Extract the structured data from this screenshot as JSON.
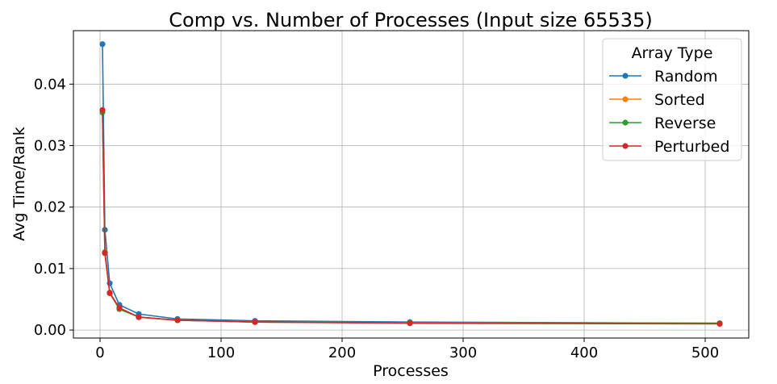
{
  "chart_data": {
    "type": "line",
    "title": "Comp vs. Number of Processes (Input size 65535)",
    "xlabel": "Processes",
    "ylabel": "Avg Time/Rank",
    "x": [
      2,
      4,
      8,
      16,
      32,
      64,
      128,
      256,
      512
    ],
    "xlim": [
      -22,
      536
    ],
    "ylim": [
      -0.0013,
      0.0487
    ],
    "xticks": [
      0,
      100,
      200,
      300,
      400,
      500
    ],
    "xtick_labels": [
      "0",
      "100",
      "200",
      "300",
      "400",
      "500"
    ],
    "yticks": [
      0.0,
      0.01,
      0.02,
      0.03,
      0.04
    ],
    "ytick_labels": [
      "0.00",
      "0.01",
      "0.02",
      "0.03",
      "0.04"
    ],
    "grid": true,
    "legend": {
      "title": "Array Type",
      "placement": "top-right"
    },
    "series": [
      {
        "name": "Random",
        "color": "#1f77b4",
        "values": [
          0.0465,
          0.0163,
          0.0076,
          0.0041,
          0.0026,
          0.0018,
          0.0015,
          0.0013,
          0.0011
        ]
      },
      {
        "name": "Sorted",
        "color": "#ff7f0e",
        "values": [
          0.0355,
          0.0127,
          0.0061,
          0.0036,
          0.0021,
          0.0016,
          0.0013,
          0.0012,
          0.0011
        ]
      },
      {
        "name": "Reverse",
        "color": "#2ca02c",
        "values": [
          0.0354,
          0.0126,
          0.006,
          0.0034,
          0.0021,
          0.0016,
          0.0013,
          0.0012,
          0.0011
        ]
      },
      {
        "name": "Perturbed",
        "color": "#d62728",
        "values": [
          0.0358,
          0.0125,
          0.006,
          0.0036,
          0.0021,
          0.0016,
          0.0013,
          0.0011,
          0.001
        ]
      }
    ]
  }
}
